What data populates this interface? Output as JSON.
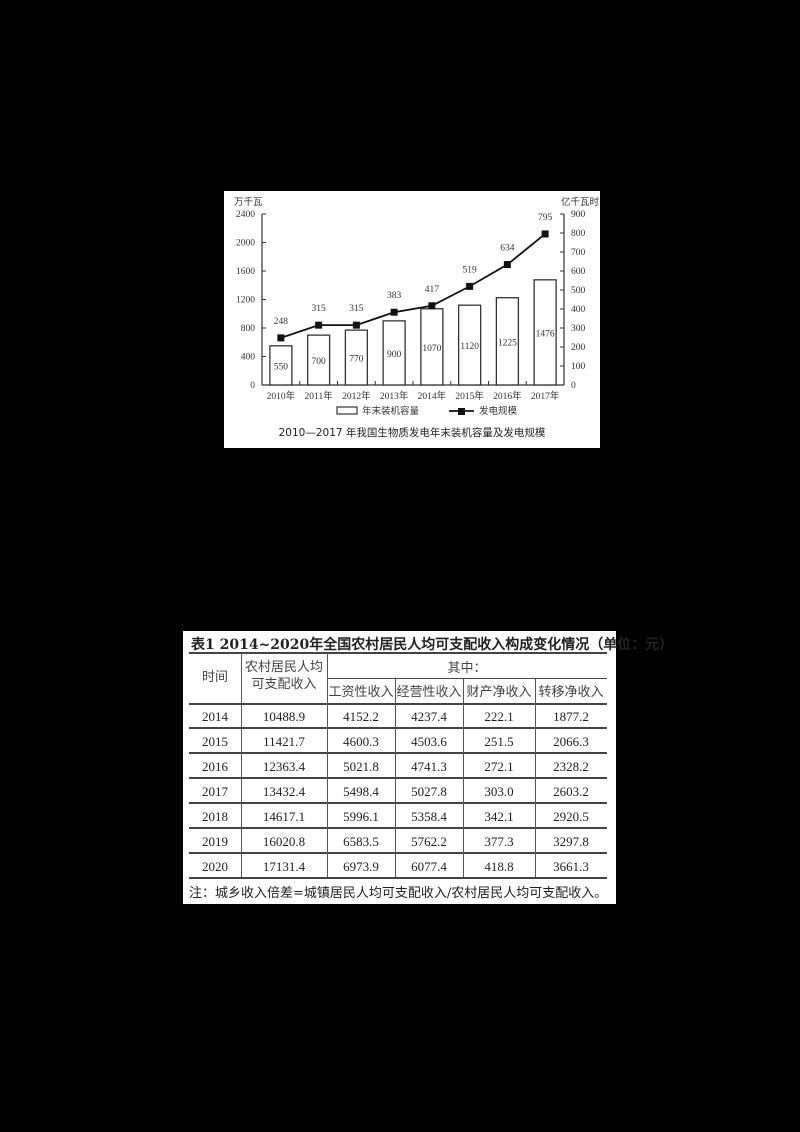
{
  "chart_data": {
    "type": "bar+line",
    "title": "2010—2017 年我国生物质发电年末装机容量及发电规模",
    "categories": [
      "2010年",
      "2011年",
      "2012年",
      "2013年",
      "2014年",
      "2015年",
      "2016年",
      "2017年"
    ],
    "series": [
      {
        "name": "年末装机容量",
        "type": "bar",
        "axis": "left",
        "values": [
          550,
          700,
          770,
          900,
          1070,
          1120,
          1225,
          1476
        ]
      },
      {
        "name": "发电规模",
        "type": "line",
        "axis": "right",
        "marker": "square",
        "values": [
          248,
          315,
          315,
          383,
          417,
          519,
          634,
          795
        ]
      }
    ],
    "ylabel_left": "万千瓦",
    "ylabel_right": "亿千瓦时",
    "ylim_left": [
      0,
      2400
    ],
    "yticks_left": [
      0,
      400,
      800,
      1200,
      1600,
      2000,
      2400
    ],
    "ylim_right": [
      0,
      900
    ],
    "yticks_right": [
      0,
      100,
      200,
      300,
      400,
      500,
      600,
      700,
      800,
      900
    ],
    "grid": false,
    "legend_position": "bottom"
  },
  "table": {
    "title": "表1  2014~2020年全国农村居民人均可支配收入构成变化情况（单位：元）",
    "headers": {
      "time": "时间",
      "income_line1": "农村居民人均",
      "income_line2": "可支配收入",
      "group": "其中：",
      "sub": [
        "工资性收入",
        "经营性收入",
        "财产净收入",
        "转移净收入"
      ]
    },
    "rows": [
      [
        "2014",
        "10488.9",
        "4152.2",
        "4237.4",
        "222.1",
        "1877.2"
      ],
      [
        "2015",
        "11421.7",
        "4600.3",
        "4503.6",
        "251.5",
        "2066.3"
      ],
      [
        "2016",
        "12363.4",
        "5021.8",
        "4741.3",
        "272.1",
        "2328.2"
      ],
      [
        "2017",
        "13432.4",
        "5498.4",
        "5027.8",
        "303.0",
        "2603.2"
      ],
      [
        "2018",
        "14617.1",
        "5996.1",
        "5358.4",
        "342.1",
        "2920.5"
      ],
      [
        "2019",
        "16020.8",
        "6583.5",
        "5762.2",
        "377.3",
        "3297.8"
      ],
      [
        "2020",
        "17131.4",
        "6973.9",
        "6077.4",
        "418.8",
        "3661.3"
      ]
    ],
    "note": "注：城乡收入倍差=城镇居民人均可支配收入/农村居民人均可支配收入。"
  }
}
